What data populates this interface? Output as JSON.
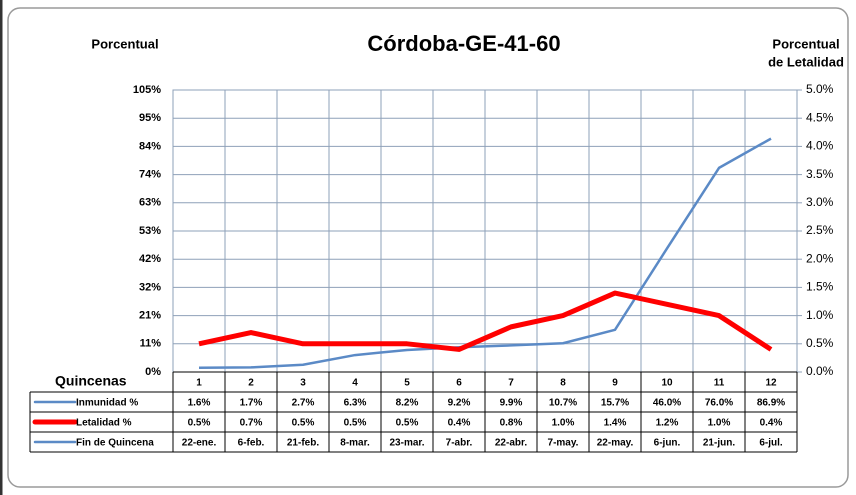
{
  "chart_data": {
    "type": "line",
    "title": "Córdoba-GE-41-60",
    "y_label": "Porcentual",
    "y2_label": [
      "Porcentual",
      "de Letalidad"
    ],
    "x_label": "Quincenas",
    "categories": [
      "1",
      "2",
      "3",
      "4",
      "5",
      "6",
      "7",
      "8",
      "9",
      "10",
      "11",
      "12"
    ],
    "series": [
      {
        "name": "Inmunidad %",
        "color": "#5b8ac6",
        "axis": "y",
        "values": [
          1.6,
          1.7,
          2.7,
          6.3,
          8.2,
          9.2,
          9.9,
          10.7,
          15.7,
          46.0,
          76.0,
          86.9
        ],
        "value_labels": [
          "1.6%",
          "1.7%",
          "2.7%",
          "6.3%",
          "8.2%",
          "9.2%",
          "9.9%",
          "10.7%",
          "15.7%",
          "46.0%",
          "76.0%",
          "86.9%"
        ]
      },
      {
        "name": "Letalidad %",
        "color": "#ff0000",
        "axis": "y2",
        "values": [
          0.5,
          0.7,
          0.5,
          0.5,
          0.5,
          0.4,
          0.8,
          1.0,
          1.4,
          1.2,
          1.0,
          0.4
        ],
        "value_labels": [
          "0.5%",
          "0.7%",
          "0.5%",
          "0.5%",
          "0.5%",
          "0.4%",
          "0.8%",
          "1.0%",
          "1.4%",
          "1.2%",
          "1.0%",
          "0.4%"
        ]
      }
    ],
    "dates_name": "Fin de Quincena",
    "dates": [
      "22-ene.",
      "6-feb.",
      "21-feb.",
      "8-mar.",
      "23-mar.",
      "7-abr.",
      "22-abr.",
      "7-may.",
      "22-may.",
      "6-jun.",
      "21-jun.",
      "6-jul."
    ],
    "ylim": [
      0,
      105
    ],
    "yticks": [
      {
        "value": 0,
        "label": "0%"
      },
      {
        "value": 10.5,
        "label": "11%"
      },
      {
        "value": 21,
        "label": "21%"
      },
      {
        "value": 31.5,
        "label": "32%"
      },
      {
        "value": 42,
        "label": "42%"
      },
      {
        "value": 52.5,
        "label": "53%"
      },
      {
        "value": 63,
        "label": "63%"
      },
      {
        "value": 73.5,
        "label": "74%"
      },
      {
        "value": 84,
        "label": "84%"
      },
      {
        "value": 94.5,
        "label": "95%"
      },
      {
        "value": 105,
        "label": "105%"
      }
    ],
    "y2lim": [
      0,
      5
    ],
    "y2ticks": [
      {
        "value": 0,
        "label": "0.0%"
      },
      {
        "value": 0.5,
        "label": "0.5%"
      },
      {
        "value": 1,
        "label": "1.0%"
      },
      {
        "value": 1.5,
        "label": "1.5%"
      },
      {
        "value": 2,
        "label": "2.0%"
      },
      {
        "value": 2.5,
        "label": "2.5%"
      },
      {
        "value": 3,
        "label": "3.0%"
      },
      {
        "value": 3.5,
        "label": "3.5%"
      },
      {
        "value": 4,
        "label": "4.0%"
      },
      {
        "value": 4.5,
        "label": "4.5%"
      },
      {
        "value": 5,
        "label": "5.0%"
      }
    ],
    "grid": true
  }
}
